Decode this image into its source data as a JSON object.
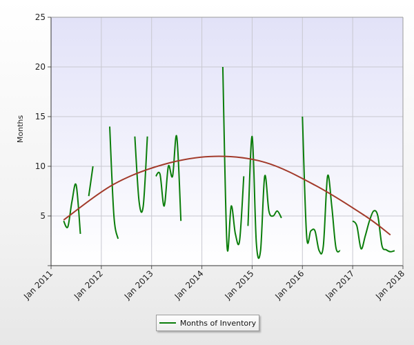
{
  "chart_data": {
    "type": "line",
    "title": "",
    "xlabel": "",
    "ylabel": "Months",
    "ylim": [
      0,
      25
    ],
    "yticks": [
      5,
      10,
      15,
      20,
      25
    ],
    "xlim": [
      "2011-01",
      "2018-01"
    ],
    "xtick_labels": [
      "Jan 2011",
      "Jan 2012",
      "Jan 2013",
      "Jan 2014",
      "Jan 2015",
      "Jan 2016",
      "Jan 2017",
      "Jan 2018"
    ],
    "grid": true,
    "legend_position": "bottom-center",
    "series": [
      {
        "name": "Months of Inventory",
        "color": "#0a7d0a",
        "segments": [
          [
            [
              "2011-04",
              4.5
            ],
            [
              "2011-05",
              3.9
            ],
            [
              "2011-06",
              6.5
            ],
            [
              "2011-07",
              8.1
            ],
            [
              "2011-08",
              3.2
            ]
          ],
          [
            [
              "2011-10",
              7.0
            ],
            [
              "2011-11",
              10.0
            ]
          ],
          [
            [
              "2012-03",
              14.0
            ],
            [
              "2012-04",
              5.0
            ],
            [
              "2012-05",
              2.7
            ]
          ],
          [
            [
              "2012-09",
              13.0
            ],
            [
              "2012-10",
              6.5
            ],
            [
              "2012-11",
              6.0
            ],
            [
              "2012-12",
              13.0
            ]
          ],
          [
            [
              "2013-02",
              9.0
            ],
            [
              "2013-03",
              9.2
            ],
            [
              "2013-04",
              6.0
            ],
            [
              "2013-05",
              10.0
            ],
            [
              "2013-06",
              9.0
            ],
            [
              "2013-07",
              13.0
            ],
            [
              "2013-08",
              4.5
            ]
          ],
          [
            [
              "2014-06",
              20.0
            ],
            [
              "2014-07",
              2.0
            ],
            [
              "2014-08",
              6.0
            ],
            [
              "2014-09",
              3.2
            ],
            [
              "2014-10",
              2.5
            ],
            [
              "2014-11",
              9.0
            ]
          ],
          [
            [
              "2014-12",
              4.0
            ],
            [
              "2015-01",
              13.0
            ],
            [
              "2015-02",
              2.3
            ],
            [
              "2015-03",
              1.5
            ],
            [
              "2015-04",
              9.0
            ],
            [
              "2015-05",
              5.5
            ],
            [
              "2015-06",
              5.0
            ],
            [
              "2015-07",
              5.5
            ],
            [
              "2015-08",
              4.8
            ]
          ],
          [
            [
              "2016-01",
              15.0
            ],
            [
              "2016-02",
              3.0
            ],
            [
              "2016-03",
              3.5
            ],
            [
              "2016-04",
              3.5
            ],
            [
              "2016-05",
              1.5
            ],
            [
              "2016-06",
              2.0
            ],
            [
              "2016-07",
              9.0
            ],
            [
              "2016-08",
              6.0
            ],
            [
              "2016-09",
              1.8
            ],
            [
              "2016-10",
              1.5
            ]
          ],
          [
            [
              "2017-01",
              4.5
            ],
            [
              "2017-02",
              4.0
            ],
            [
              "2017-03",
              1.7
            ],
            [
              "2017-04",
              3.0
            ],
            [
              "2017-05",
              4.5
            ],
            [
              "2017-06",
              5.5
            ],
            [
              "2017-07",
              5.0
            ],
            [
              "2017-08",
              2.0
            ],
            [
              "2017-09",
              1.6
            ],
            [
              "2017-10",
              1.4
            ],
            [
              "2017-11",
              1.5
            ]
          ]
        ]
      },
      {
        "name": "",
        "type": "trend",
        "color": "#a23a2a",
        "points": [
          [
            "2011-04",
            4.6
          ],
          [
            "2012-04",
            8.2
          ],
          [
            "2013-04",
            10.2
          ],
          [
            "2014-04",
            11.0
          ],
          [
            "2015-04",
            10.4
          ],
          [
            "2016-04",
            8.1
          ],
          [
            "2017-04",
            5.0
          ],
          [
            "2017-10",
            3.1
          ]
        ]
      }
    ]
  }
}
